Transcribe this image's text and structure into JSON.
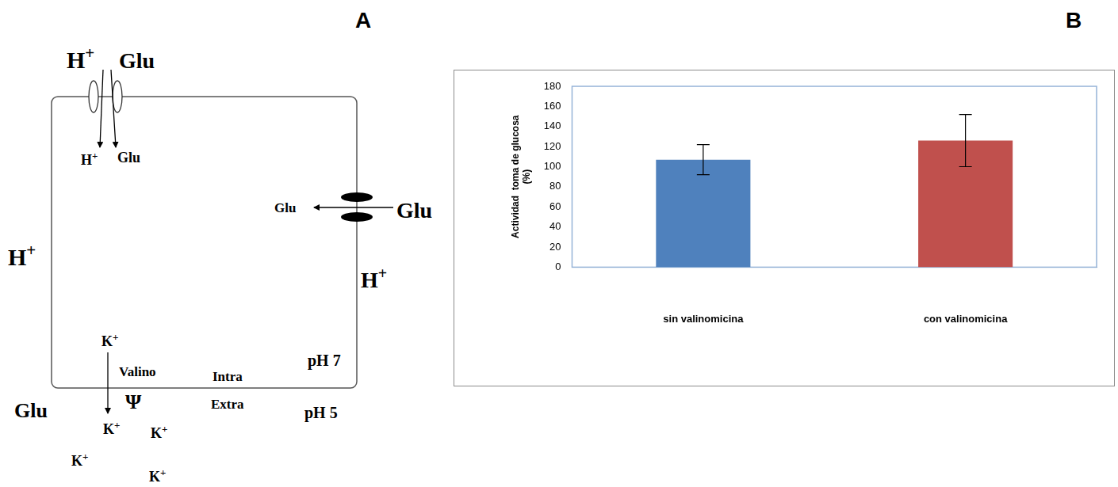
{
  "letters": [
    "A",
    "B"
  ],
  "diagram": {
    "top_transporter": {
      "outside": [
        "H+",
        "Glu"
      ],
      "inside": [
        "H+",
        "Glu"
      ]
    },
    "right_transporter": {
      "inside": "Glu",
      "outside": "Glu"
    },
    "protons": [
      "H+",
      "H+"
    ],
    "glucose_outside": "Glu",
    "valinomycin": {
      "label": "Valino",
      "ion": "K+",
      "potential": "Ψ",
      "outside_ions": [
        "K+",
        "K+",
        "K+",
        "K+"
      ]
    },
    "compartments": {
      "inside": "Intra",
      "outside": "Extra"
    },
    "pH": {
      "inside": "pH 7",
      "outside": "pH 5"
    }
  },
  "chart_data": {
    "type": "bar",
    "y_label": [
      "Actividad  toma de glucosa",
      "(%)"
    ],
    "categories": [
      "sin valinomicina",
      "con valinomicina"
    ],
    "values": [
      107,
      126
    ],
    "errors": [
      15,
      26
    ],
    "colors": [
      "#4f81bd",
      "#c0504d"
    ],
    "ylim": [
      0,
      180
    ],
    "yticks": [
      0,
      20,
      40,
      60,
      80,
      100,
      120,
      140,
      160,
      180
    ],
    "grid": false
  }
}
